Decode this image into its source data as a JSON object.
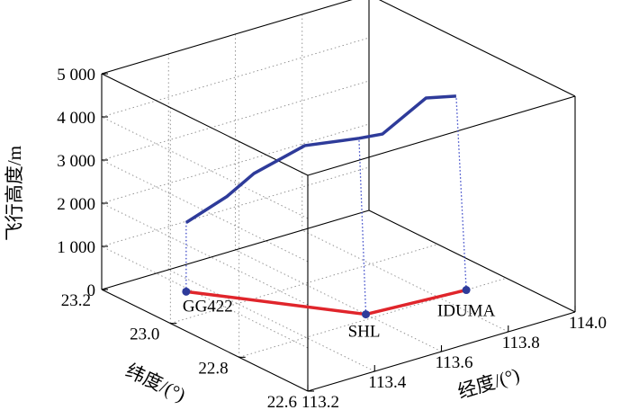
{
  "chart_data": {
    "type": "line",
    "xlabel": "经度/(°)",
    "ylabel": "纬度/(°)",
    "zlabel": "飞行高度/m",
    "x_ticks": [
      "113.2",
      "113.4",
      "113.6",
      "113.8",
      "114.0"
    ],
    "y_ticks": [
      "23.2",
      "23.0",
      "22.8",
      "22.6"
    ],
    "z_ticks": [
      "0",
      "1 000",
      "2 000",
      "3 000",
      "4 000",
      "5 000"
    ],
    "xlim": [
      113.2,
      114.0
    ],
    "ylim": [
      22.6,
      23.2
    ],
    "zlim": [
      0,
      5000
    ],
    "grid": true,
    "waypoints": [
      {
        "label": "GG422",
        "lon": 113.35,
        "lat": 23.1
      },
      {
        "label": "SHL",
        "lon": 113.6,
        "lat": 22.82
      },
      {
        "label": "IDUMA",
        "lon": 113.88,
        "lat": 22.8
      }
    ],
    "series": [
      {
        "values": [
          {
            "lon": 113.35,
            "lat": 23.1,
            "alt": 1600
          },
          {
            "lon": 113.41,
            "lat": 23.04,
            "alt": 2300
          },
          {
            "lon": 113.45,
            "lat": 23.0,
            "alt": 2900
          },
          {
            "lon": 113.52,
            "lat": 22.92,
            "alt": 3700
          },
          {
            "lon": 113.6,
            "lat": 22.84,
            "alt": 4000
          },
          {
            "lon": 113.66,
            "lat": 22.83,
            "alt": 4000
          },
          {
            "lon": 113.78,
            "lat": 22.82,
            "alt": 4600
          },
          {
            "lon": 113.86,
            "lat": 22.81,
            "alt": 4500
          }
        ],
        "color": "#2e3b9a"
      },
      {
        "values": [
          {
            "lon": 113.35,
            "lat": 23.1,
            "alt": 0
          },
          {
            "lon": 113.6,
            "lat": 22.82,
            "alt": 0
          },
          {
            "lon": 113.88,
            "lat": 22.8,
            "alt": 0
          }
        ],
        "color": "#e0252b"
      }
    ]
  }
}
